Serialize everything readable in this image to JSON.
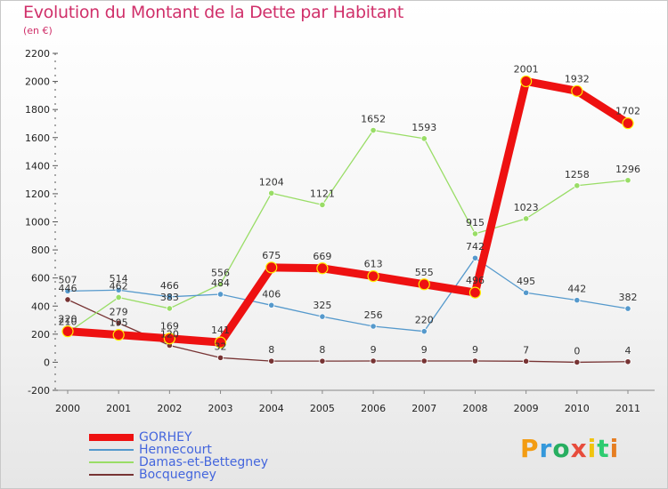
{
  "title": "Evolution du Montant de la Dette par Habitant",
  "subtitle": "(en €)",
  "brand": {
    "text": "Proxiti",
    "colors": [
      "#f39c12",
      "#3498db",
      "#27ae60",
      "#e74c3c",
      "#f1c40f",
      "#2ecc71",
      "#e67e22"
    ]
  },
  "chart_data": {
    "type": "line",
    "x": [
      "2000",
      "2001",
      "2002",
      "2003",
      "2004",
      "2005",
      "2006",
      "2007",
      "2008",
      "2009",
      "2010",
      "2011"
    ],
    "ylim": [
      -200,
      2200
    ],
    "yticks": [
      -200,
      0,
      200,
      400,
      600,
      800,
      1000,
      1200,
      1400,
      1600,
      1800,
      2000,
      2200
    ],
    "grid": false,
    "legend_position": "bottom-left",
    "series": [
      {
        "name": "GORHEY",
        "color": "#ee1111",
        "values": [
          220,
          195,
          169,
          141,
          675,
          669,
          613,
          555,
          496,
          2001,
          1932,
          1702
        ],
        "labels": [
          "220",
          "195",
          "169",
          "141",
          "675",
          "669",
          "613",
          "555",
          "496",
          "2001",
          "1932",
          "1702"
        ]
      },
      {
        "name": "Hennecourt",
        "color": "#5599cc",
        "values": [
          507,
          514,
          466,
          484,
          406,
          325,
          256,
          220,
          742,
          495,
          442,
          382
        ],
        "labels": [
          "507",
          "514",
          "466",
          "484",
          "406",
          "325",
          "256",
          "220",
          "742",
          "495",
          "442",
          "382"
        ]
      },
      {
        "name": "Damas-et-Bettegney",
        "color": "#99dd66",
        "values": [
          210,
          462,
          383,
          556,
          1204,
          1121,
          1652,
          1593,
          915,
          1023,
          1258,
          1296
        ],
        "labels": [
          "210",
          "462",
          "383",
          "556",
          "1204",
          "1121",
          "1652",
          "1593",
          "915",
          "1023",
          "1258",
          "1296"
        ]
      },
      {
        "name": "Bocquegney",
        "color": "#773333",
        "values": [
          446,
          279,
          120,
          32,
          8,
          8,
          9,
          9,
          9,
          7,
          0,
          4
        ],
        "labels": [
          "446",
          "279",
          "120",
          "32",
          "8",
          "8",
          "9",
          "9",
          "9",
          "7",
          "0",
          "4"
        ]
      }
    ]
  }
}
